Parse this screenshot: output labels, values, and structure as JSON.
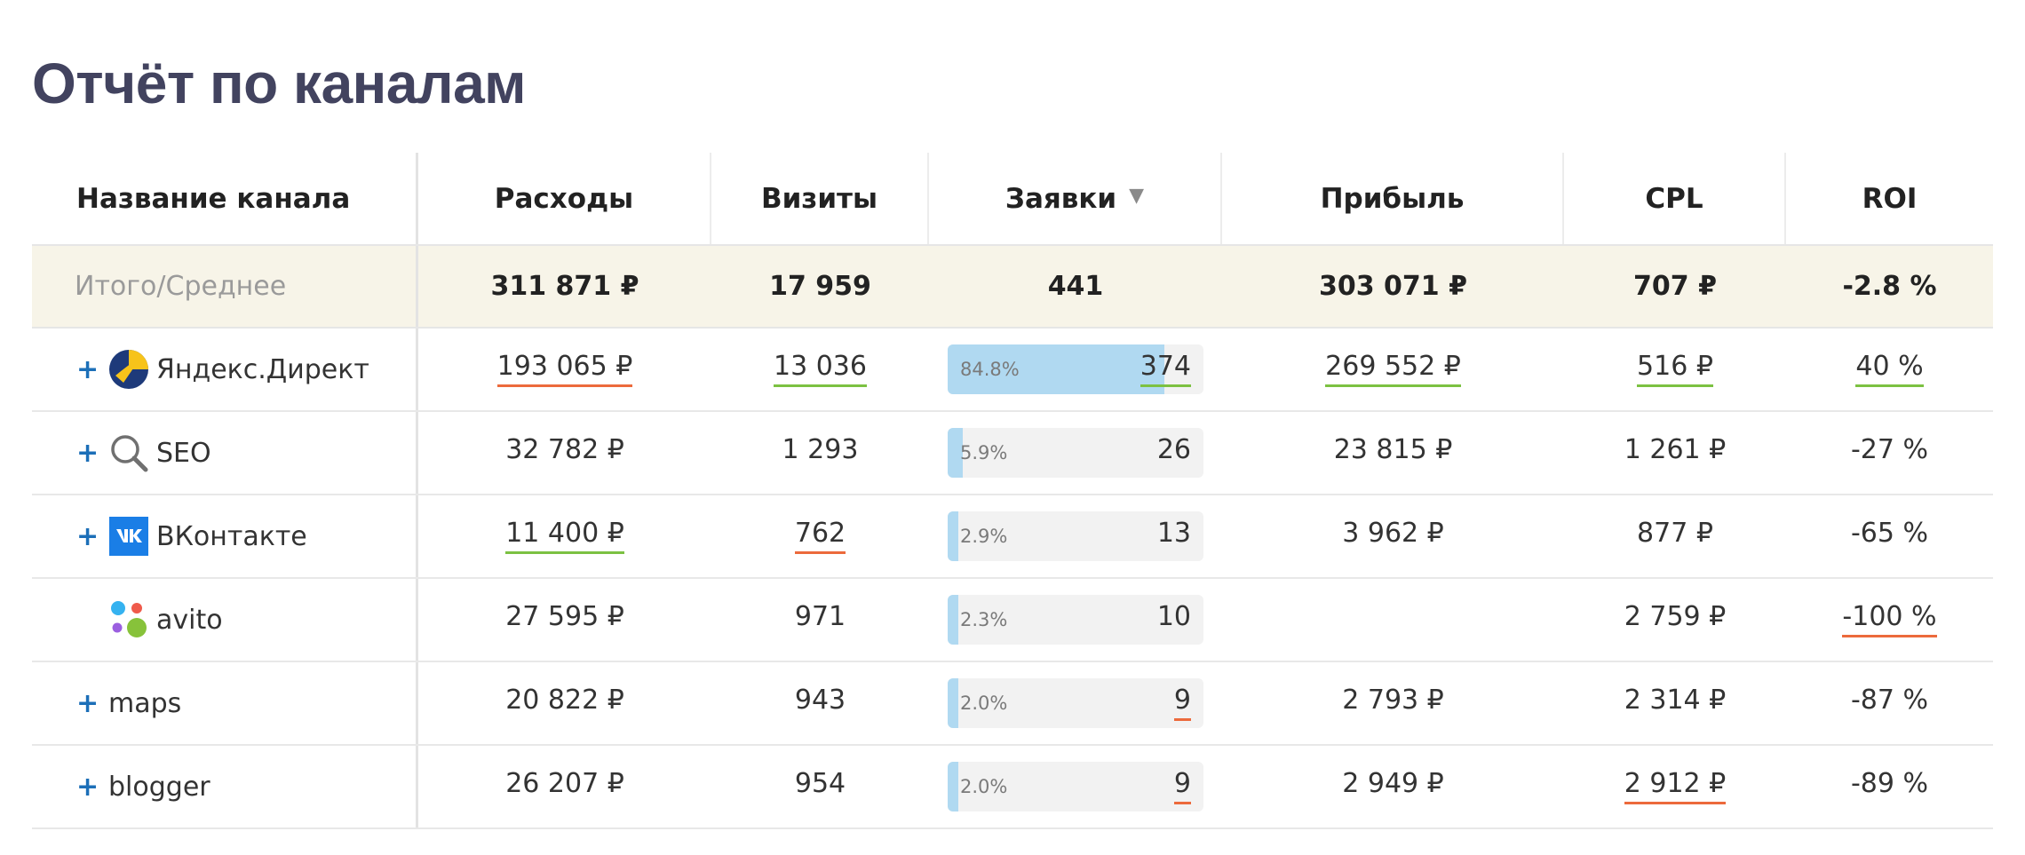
{
  "page": {
    "title": "Отчёт по каналам"
  },
  "colors": {
    "title": "#42435f",
    "total_row_bg": "#f7f4e8",
    "bar_fill": "#b0d9f1",
    "bar_bg": "#f2f2f2",
    "underline_green": "#7cc142",
    "underline_red": "#ec6a3c",
    "expand_plus": "#1c6fb8"
  },
  "table": {
    "headers": {
      "channel": "Название канала",
      "costs": "Расходы",
      "visits": "Визиты",
      "leads": "Заявки",
      "profit": "Прибыль",
      "cpl": "CPL",
      "roi": "ROI",
      "sort_indicator": "▼"
    },
    "total": {
      "label": "Итого/Среднее",
      "costs": "311 871 ₽",
      "visits": "17 959",
      "leads": "441",
      "profit": "303 071 ₽",
      "cpl": "707 ₽",
      "roi": "-2.8 %"
    },
    "rows": [
      {
        "expand": "+",
        "icon": "yandex-direct-icon",
        "name": "Яндекс.Директ",
        "costs": "193 065 ₽",
        "costs_mark": "red",
        "visits": "13 036",
        "visits_mark": "green",
        "leads_share": 84.8,
        "leads_pct": "84.8%",
        "leads": "374",
        "leads_mark": "green",
        "profit": "269 552 ₽",
        "profit_mark": "green",
        "cpl": "516 ₽",
        "cpl_mark": "green",
        "roi": "40 %",
        "roi_mark": "green"
      },
      {
        "expand": "+",
        "icon": "magnifier-icon",
        "name": "SEO",
        "costs": "32 782 ₽",
        "costs_mark": "",
        "visits": "1 293",
        "visits_mark": "",
        "leads_share": 5.9,
        "leads_pct": "5.9%",
        "leads": "26",
        "leads_mark": "",
        "profit": "23 815 ₽",
        "profit_mark": "",
        "cpl": "1 261 ₽",
        "cpl_mark": "",
        "roi": "-27 %",
        "roi_mark": ""
      },
      {
        "expand": "+",
        "icon": "vk-icon",
        "name": "ВКонтакте",
        "costs": "11 400 ₽",
        "costs_mark": "green",
        "visits": "762",
        "visits_mark": "red",
        "leads_share": 2.9,
        "leads_pct": "2.9%",
        "leads": "13",
        "leads_mark": "",
        "profit": "3 962 ₽",
        "profit_mark": "",
        "cpl": "877 ₽",
        "cpl_mark": "",
        "roi": "-65 %",
        "roi_mark": ""
      },
      {
        "expand": "",
        "icon": "avito-icon",
        "name": "avito",
        "costs": "27 595 ₽",
        "costs_mark": "",
        "visits": "971",
        "visits_mark": "",
        "leads_share": 2.3,
        "leads_pct": "2.3%",
        "leads": "10",
        "leads_mark": "",
        "profit": "",
        "profit_mark": "",
        "cpl": "2 759 ₽",
        "cpl_mark": "",
        "roi": "-100 %",
        "roi_mark": "red"
      },
      {
        "expand": "+",
        "icon": "",
        "name": "maps",
        "costs": "20 822 ₽",
        "costs_mark": "",
        "visits": "943",
        "visits_mark": "",
        "leads_share": 2.0,
        "leads_pct": "2.0%",
        "leads": "9",
        "leads_mark": "red",
        "profit": "2 793 ₽",
        "profit_mark": "",
        "cpl": "2 314 ₽",
        "cpl_mark": "",
        "roi": "-87 %",
        "roi_mark": ""
      },
      {
        "expand": "+",
        "icon": "",
        "name": "blogger",
        "costs": "26 207 ₽",
        "costs_mark": "",
        "visits": "954",
        "visits_mark": "",
        "leads_share": 2.0,
        "leads_pct": "2.0%",
        "leads": "9",
        "leads_mark": "red",
        "profit": "2 949 ₽",
        "profit_mark": "",
        "cpl": "2 912 ₽",
        "cpl_mark": "red",
        "roi": "-89 %",
        "roi_mark": ""
      }
    ]
  }
}
